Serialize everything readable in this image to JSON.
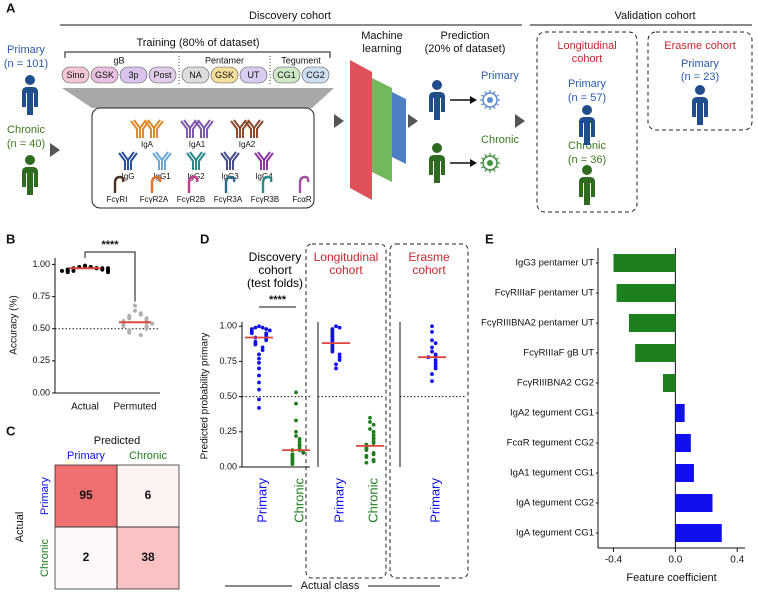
{
  "panel_a": {
    "label": "A",
    "discovery_title": "Discovery cohort",
    "validation_title": "Validation cohort",
    "training_title": "Training (80% of dataset)",
    "primary": "Primary",
    "primary_n": "(n = 101)",
    "chronic": "Chronic",
    "chronic_n": "(n = 40)",
    "antigen_groups": [
      "gB",
      "Pentamer",
      "Tegument"
    ],
    "antigens": [
      "Sino",
      "GSK",
      "3p",
      "Post",
      "NA",
      "GSK",
      "UT",
      "CG1",
      "CG2"
    ],
    "antibodies": [
      "IgA",
      "IgA1",
      "IgA2",
      "IgG",
      "IgG1",
      "IgG2",
      "IgG3",
      "IgG4"
    ],
    "receptors": [
      "FcγRI",
      "FcγR2A",
      "FcγR2B",
      "FcγR3A",
      "FcγR3B",
      "FcαR"
    ],
    "ml": [
      "Machine",
      "learning"
    ],
    "prediction": [
      "Prediction",
      "(20% of dataset)"
    ],
    "pred_primary": "Primary",
    "pred_chronic": "Chronic",
    "longitudinal": [
      "Longitudinal",
      "cohort"
    ],
    "long_primary": "Primary",
    "long_primary_n": "(n = 57)",
    "long_chronic": "Chronic",
    "long_chronic_n": "(n = 36)",
    "erasme": "Erasme cohort",
    "erasme_primary": "Primary",
    "erasme_n": "(n = 23)"
  },
  "panel_c": {
    "label": "C",
    "title": "Predicted",
    "col_labels": [
      "Primary",
      "Chronic"
    ],
    "row_labels": [
      "Primary",
      "Chronic"
    ],
    "row_title": "Actual",
    "cells": [
      [
        95,
        6
      ],
      [
        2,
        38
      ]
    ]
  },
  "chart_data": [
    {
      "type": "dot",
      "label": "B",
      "ylabel": "Accuracy (%)",
      "ylim": [
        0,
        1.05
      ],
      "yticks": [
        {
          "value": 0,
          "label": "0.00"
        },
        {
          "value": 0.25,
          "label": "0.25"
        },
        {
          "value": 0.5,
          "label": "0.50"
        },
        {
          "value": 0.75,
          "label": "0.75"
        },
        {
          "value": 1,
          "label": "1.00"
        }
      ],
      "reference_line": 0.5,
      "significance": "****",
      "median_color": "#e0453a",
      "series": [
        {
          "name": "Actual",
          "color": "#000000",
          "median": 0.97,
          "values": [
            0.99,
            0.98,
            0.98,
            0.97,
            0.97,
            0.97,
            0.96,
            0.96,
            0.96,
            0.95,
            0.95,
            0.95,
            0.94,
            0.94,
            0.97,
            0.98,
            0.96,
            0.95,
            0.97,
            0.99
          ]
        },
        {
          "name": "Permuted",
          "color": "#b0b0b0",
          "median": 0.55,
          "values": [
            0.68,
            0.64,
            0.62,
            0.61,
            0.6,
            0.59,
            0.58,
            0.58,
            0.57,
            0.56,
            0.56,
            0.55,
            0.55,
            0.54,
            0.54,
            0.53,
            0.52,
            0.52,
            0.51,
            0.5,
            0.49,
            0.48,
            0.47,
            0.45
          ]
        }
      ]
    },
    {
      "type": "dot-panels",
      "label": "D",
      "ylabel": "Predicted probability primary",
      "xlabel": "Actual class",
      "ylim": [
        0,
        1.03
      ],
      "yticks": [
        {
          "value": 0,
          "label": "0.00"
        },
        {
          "value": 0.25,
          "label": "0.25"
        },
        {
          "value": 0.5,
          "label": "0.50"
        },
        {
          "value": 0.75,
          "label": "0.75"
        },
        {
          "value": 1,
          "label": "1.00"
        }
      ],
      "reference_line": 0.5,
      "median_color": "#e0453a",
      "cohorts": [
        {
          "title": [
            "Discovery",
            "cohort",
            "(test folds)"
          ],
          "title_color": "#000000",
          "significance": "****",
          "series": [
            {
              "name": "Primary",
              "color": "#1010ee",
              "median": 0.92,
              "values": [
                1.0,
                0.99,
                0.99,
                0.98,
                0.98,
                0.97,
                0.97,
                0.96,
                0.95,
                0.95,
                0.94,
                0.93,
                0.92,
                0.92,
                0.91,
                0.9,
                0.89,
                0.88,
                0.87,
                0.85,
                0.83,
                0.8,
                0.77,
                0.74,
                0.7,
                0.65,
                0.6,
                0.55,
                0.48,
                0.42
              ]
            },
            {
              "name": "Chronic",
              "color": "#1e7f1e",
              "median": 0.12,
              "values": [
                0.53,
                0.45,
                0.33,
                0.25,
                0.22,
                0.2,
                0.18,
                0.16,
                0.15,
                0.13,
                0.12,
                0.12,
                0.11,
                0.1,
                0.09,
                0.08,
                0.07,
                0.06,
                0.05,
                0.04,
                0.03,
                0.02
              ]
            }
          ]
        },
        {
          "title": [
            "Longitudinal",
            "cohort"
          ],
          "title_color": "#c0282d",
          "series": [
            {
              "name": "Primary",
              "color": "#1010ee",
              "median": 0.88,
              "values": [
                1.0,
                0.99,
                0.98,
                0.97,
                0.96,
                0.95,
                0.94,
                0.93,
                0.92,
                0.91,
                0.9,
                0.89,
                0.88,
                0.87,
                0.86,
                0.85,
                0.84,
                0.83,
                0.82,
                0.8,
                0.78,
                0.76,
                0.73,
                0.7
              ]
            },
            {
              "name": "Chronic",
              "color": "#1e7f1e",
              "median": 0.15,
              "values": [
                0.35,
                0.32,
                0.3,
                0.27,
                0.25,
                0.23,
                0.21,
                0.2,
                0.18,
                0.17,
                0.16,
                0.15,
                0.14,
                0.13,
                0.12,
                0.1,
                0.09,
                0.08,
                0.07,
                0.05,
                0.04,
                0.03
              ]
            }
          ]
        },
        {
          "title": [
            "Erasme",
            "cohort"
          ],
          "title_color": "#c0282d",
          "series": [
            {
              "name": "Primary",
              "color": "#1010ee",
              "median": 0.78,
              "values": [
                1.0,
                0.96,
                0.9,
                0.88,
                0.85,
                0.82,
                0.8,
                0.79,
                0.78,
                0.76,
                0.74,
                0.72,
                0.7,
                0.66,
                0.61
              ]
            }
          ]
        }
      ]
    },
    {
      "type": "hbar",
      "label": "E",
      "xlabel": "Feature coefficient",
      "xlim": [
        -0.5,
        0.45
      ],
      "xticks": [
        -0.4,
        {
          "value": 0,
          "label": "0.0"
        },
        0.4
      ],
      "negative_color": "#1e7f1e",
      "positive_color": "#1010ee",
      "categories": [
        "IgG3 pentamer UT",
        "FcγRIIIaF pentamer UT",
        "FcγRIIIBNA2 pentamer UT",
        "FcγRIIIaF gB UT",
        "FcγRIIIBNA2 CG2",
        "IgA2 tegument CG1",
        "FcαR tegument CG2",
        "IgA1 tegument CG1",
        "IgA tegument CG2",
        "IgA tegument CG1"
      ],
      "values": [
        -0.4,
        -0.38,
        -0.3,
        -0.26,
        -0.08,
        0.06,
        0.1,
        0.12,
        0.24,
        0.3
      ]
    }
  ]
}
